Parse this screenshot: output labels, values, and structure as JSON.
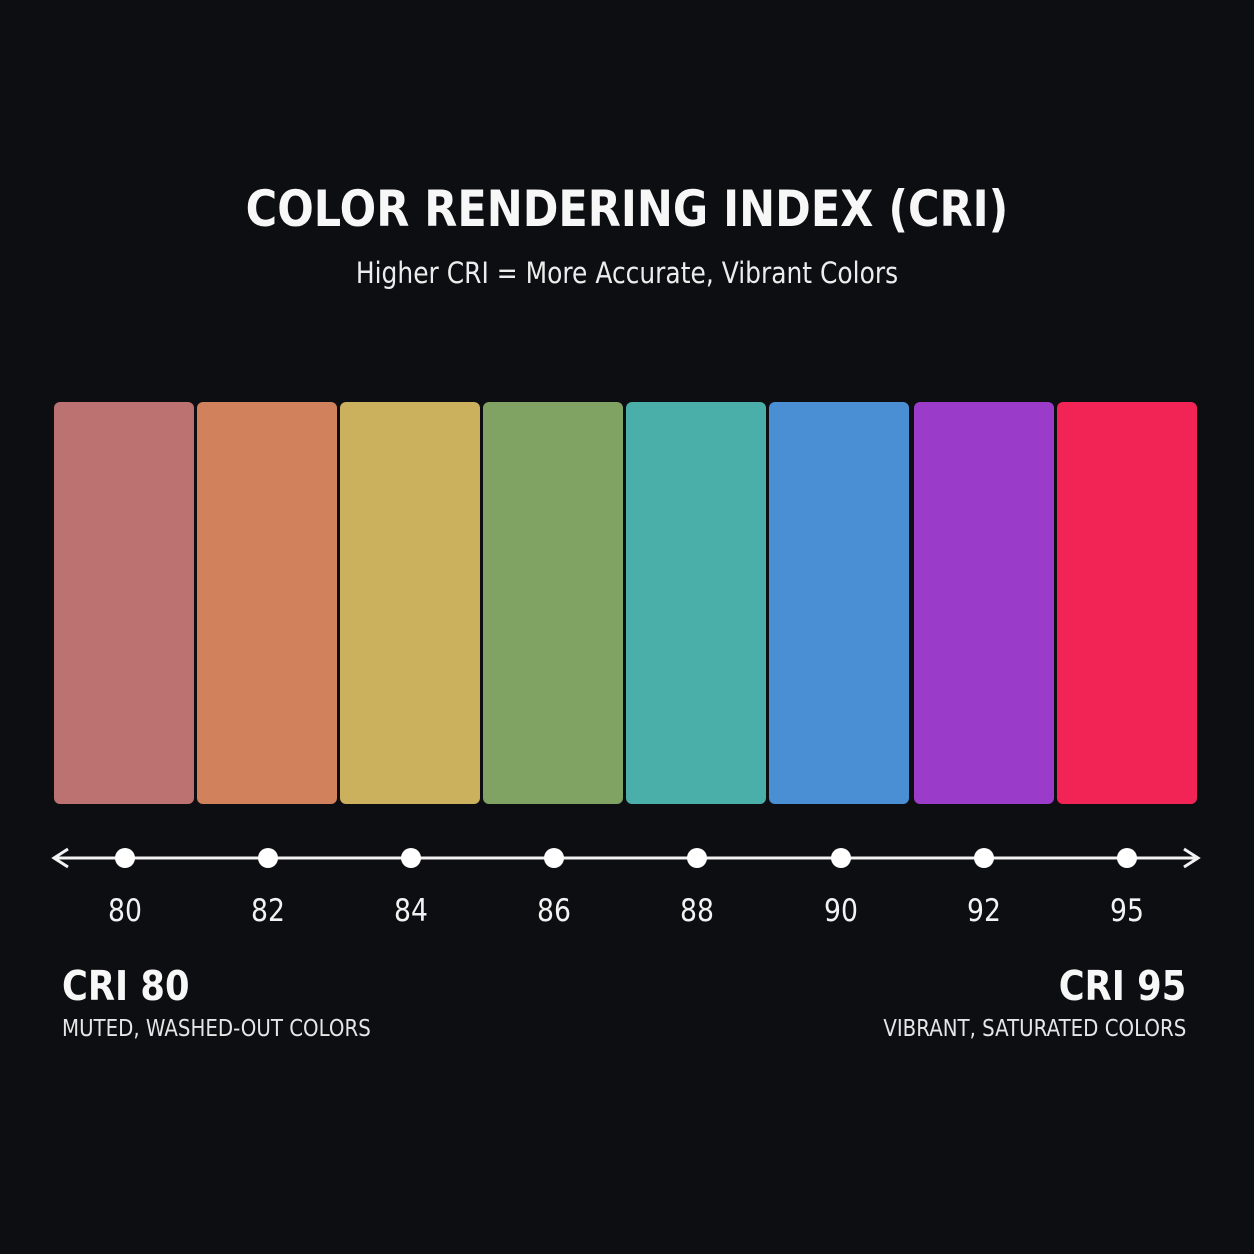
{
  "header": {
    "title": "COLOR RENDERING INDEX (CRI)",
    "subtitle": "Higher CRI = More Accurate, Vibrant Colors"
  },
  "swatches": [
    {
      "color": "#bc7270"
    },
    {
      "color": "#d1825c"
    },
    {
      "color": "#cbb05e"
    },
    {
      "color": "#80a263"
    },
    {
      "color": "#4aaea9"
    },
    {
      "color": "#4a8fd3"
    },
    {
      "color": "#9a3bc9"
    },
    {
      "color": "#f22355"
    }
  ],
  "scale": {
    "ticks": [
      "80",
      "82",
      "84",
      "86",
      "88",
      "90",
      "92",
      "95"
    ]
  },
  "left_end": {
    "title": "CRI 80",
    "description": "MUTED, WASHED-OUT COLORS"
  },
  "right_end": {
    "title": "CRI 95",
    "description": "VIBRANT, SATURATED COLORS"
  }
}
